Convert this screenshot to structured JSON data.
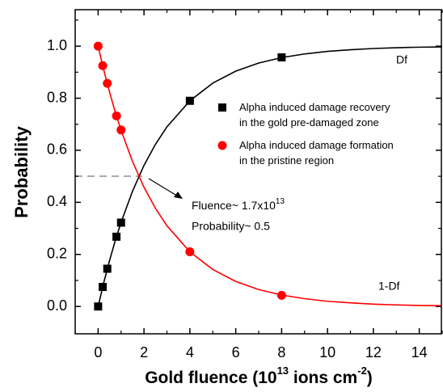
{
  "chart_data": {
    "type": "line",
    "x_label": [
      "Gold fluence (10",
      "13",
      " ions cm",
      "-2",
      ")"
    ],
    "y_label": "Probability",
    "xlim": [
      -1,
      15
    ],
    "ylim": [
      -0.105,
      1.14
    ],
    "xticks": [
      0,
      2,
      4,
      6,
      8,
      10,
      12,
      14
    ],
    "xminorticks": [
      -1,
      1,
      3,
      5,
      7,
      9,
      11,
      13,
      15
    ],
    "yticks": [
      {
        "value": 0,
        "label": "0.0"
      },
      0.2,
      0.4,
      0.6,
      0.8,
      {
        "value": 1,
        "label": "1.0"
      }
    ],
    "yminorticks": [
      0.1,
      0.3,
      0.5,
      0.7,
      0.9,
      1.1
    ],
    "series": [
      {
        "name": "Alpha induced damage recovery in the gold pre-damaged zone",
        "color": "#000000",
        "marker": "square",
        "x": [
          0,
          0.2,
          0.4,
          0.8,
          1,
          4,
          8
        ],
        "values": [
          0,
          0.075,
          0.145,
          0.268,
          0.322,
          0.79,
          0.957
        ]
      },
      {
        "name": "Alpha induced damage formation in the pristine region",
        "color": "#ff0000",
        "marker": "circle",
        "x": [
          0,
          0.2,
          0.4,
          0.8,
          1,
          4,
          8
        ],
        "values": [
          1,
          0.925,
          0.857,
          0.732,
          0.678,
          0.21,
          0.043
        ]
      },
      {
        "name": "Df",
        "color": "#000000",
        "x": [
          0,
          0.25,
          0.5,
          0.75,
          1,
          1.5,
          2,
          2.5,
          3,
          4,
          5,
          6,
          7,
          8,
          9,
          10,
          11,
          12,
          13,
          14,
          15
        ],
        "values": [
          0,
          0.093,
          0.177,
          0.254,
          0.323,
          0.443,
          0.542,
          0.623,
          0.69,
          0.79,
          0.858,
          0.904,
          0.935,
          0.956,
          0.97,
          0.98,
          0.986,
          0.991,
          0.994,
          0.996,
          0.997
        ]
      },
      {
        "name": "1-Df",
        "color": "#ff0000",
        "x": [
          0,
          0.25,
          0.5,
          0.75,
          1,
          1.5,
          2,
          2.5,
          3,
          4,
          5,
          6,
          7,
          8,
          9,
          10,
          11,
          12,
          13,
          14,
          15
        ],
        "values": [
          1,
          0.907,
          0.823,
          0.746,
          0.677,
          0.557,
          0.458,
          0.377,
          0.31,
          0.21,
          0.142,
          0.096,
          0.065,
          0.044,
          0.03,
          0.02,
          0.014,
          0.009,
          0.006,
          0.004,
          0.003
        ]
      }
    ],
    "annotations": [
      {
        "text": "Fluence~ 1.7x10",
        "sup": "13"
      },
      {
        "text": "Probability~ 0.5"
      }
    ]
  }
}
